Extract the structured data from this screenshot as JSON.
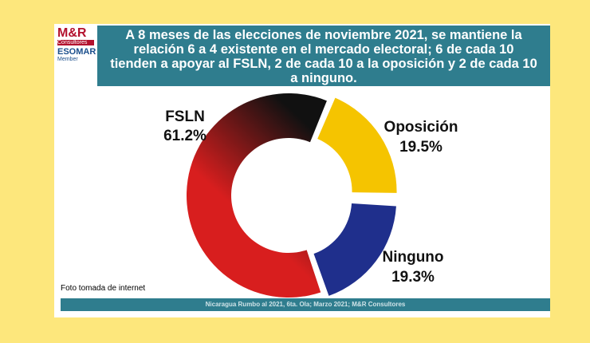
{
  "logo": {
    "name": "M&R",
    "sub": "Consultores",
    "org": "ESOMAR",
    "member": "Member"
  },
  "caption": "Foto tomada de internet",
  "chart_data": {
    "type": "donut",
    "title": "A 8 meses de las elecciones de noviembre 2021, se mantiene la relación 6 a 4 existente en el mercado electoral; 6 de cada 10 tienden a apoyar al FSLN, 2 de cada 10 a la oposición y 2 de cada 10 a ninguno.",
    "source": "Nicaragua Rumbo al 2021, 6ta. Ola; Marzo 2021; M&R Consultores",
    "categories": [
      "FSLN",
      "Oposición",
      "Ninguno"
    ],
    "values": [
      61.2,
      19.5,
      19.3
    ],
    "value_labels": [
      "61.2%",
      "19.5%",
      "19.3%"
    ],
    "colors": [
      "#d81e1e",
      "#f5c400",
      "#1f2f8c"
    ]
  }
}
